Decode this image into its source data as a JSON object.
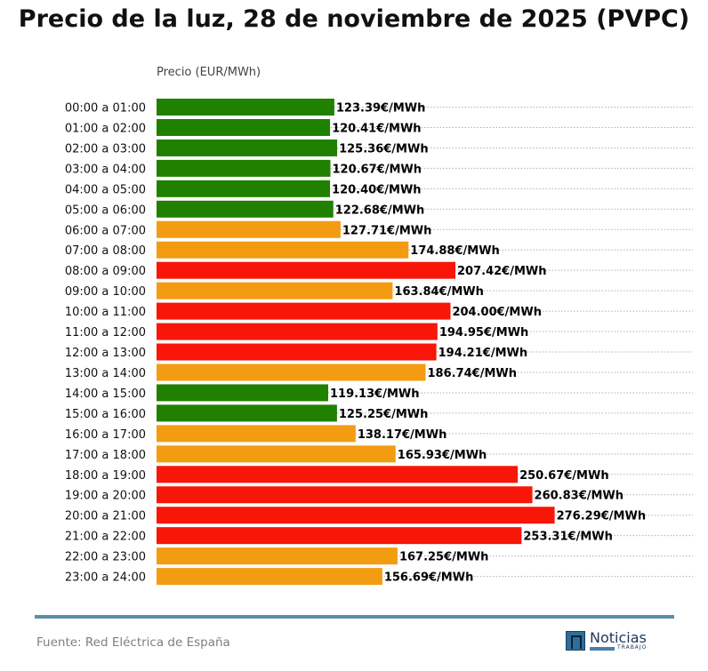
{
  "header": {
    "title": "Precio de la luz, 28 de noviembre de 2025 (PVPC)"
  },
  "footer": {
    "source": "Fuente: Red Eléctrica de España",
    "logo_name": "Noticias",
    "logo_sub": "TRABAJO"
  },
  "colors": {
    "low": "#208000",
    "mid": "#f39c12",
    "high": "#f81609",
    "grid": "#b0b0b0",
    "rule": "#5b8fa8"
  },
  "chart_data": {
    "type": "bar",
    "orientation": "horizontal",
    "title": "Precio de la luz, 28 de noviembre de 2025 (PVPC)",
    "xlabel": "Precio (EUR/MWh)",
    "unit_suffix": "€/MWh",
    "grid": "horizontal dotted",
    "categories": [
      "00:00 a 01:00",
      "01:00 a 02:00",
      "02:00 a 03:00",
      "03:00 a 04:00",
      "04:00 a 05:00",
      "05:00 a 06:00",
      "06:00 a 07:00",
      "07:00 a 08:00",
      "08:00 a 09:00",
      "09:00 a 10:00",
      "10:00 a 11:00",
      "11:00 a 12:00",
      "12:00 a 13:00",
      "13:00 a 14:00",
      "14:00 a 15:00",
      "15:00 a 16:00",
      "16:00 a 17:00",
      "17:00 a 18:00",
      "18:00 a 19:00",
      "19:00 a 20:00",
      "20:00 a 21:00",
      "21:00 a 22:00",
      "22:00 a 23:00",
      "23:00 a 24:00"
    ],
    "values": [
      123.39,
      120.41,
      125.36,
      120.67,
      120.4,
      122.68,
      127.71,
      174.88,
      207.42,
      163.84,
      204.0,
      194.95,
      194.21,
      186.74,
      119.13,
      125.25,
      138.17,
      165.93,
      250.67,
      260.83,
      276.29,
      253.31,
      167.25,
      156.69
    ],
    "value_labels": [
      "123.39€/MWh",
      "120.41€/MWh",
      "125.36€/MWh",
      "120.67€/MWh",
      "120.40€/MWh",
      "122.68€/MWh",
      "127.71€/MWh",
      "174.88€/MWh",
      "207.42€/MWh",
      "163.84€/MWh",
      "204.00€/MWh",
      "194.95€/MWh",
      "194.21€/MWh",
      "186.74€/MWh",
      "119.13€/MWh",
      "125.25€/MWh",
      "138.17€/MWh",
      "165.93€/MWh",
      "250.67€/MWh",
      "260.83€/MWh",
      "276.29€/MWh",
      "253.31€/MWh",
      "167.25€/MWh",
      "156.69€/MWh"
    ],
    "levels": [
      "low",
      "low",
      "low",
      "low",
      "low",
      "low",
      "mid",
      "mid",
      "high",
      "mid",
      "high",
      "high",
      "high",
      "mid",
      "low",
      "low",
      "mid",
      "mid",
      "high",
      "high",
      "high",
      "high",
      "mid",
      "mid"
    ]
  }
}
